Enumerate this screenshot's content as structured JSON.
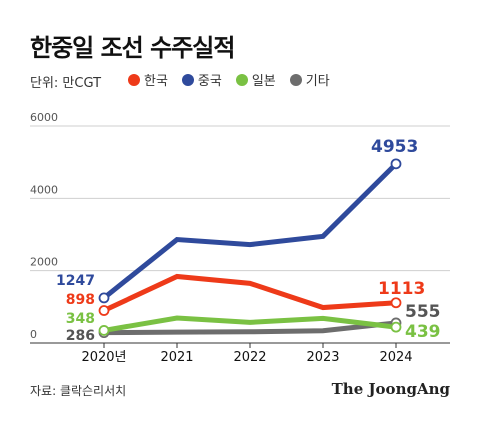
{
  "title": "한중일 조선 수주실적",
  "unit_label": "단위: 만CGT",
  "source": "자료: 클락슨리서치",
  "brand": "The JoongAng",
  "chart_data": {
    "type": "line",
    "x": [
      "2020년",
      "2021",
      "2022",
      "2023",
      "2024"
    ],
    "ylim": [
      0,
      6000
    ],
    "yticks": [
      0,
      2000,
      4000,
      6000
    ],
    "series": [
      {
        "name": "한국",
        "color": "#ee3a19",
        "values": [
          898,
          1840,
          1650,
          980,
          1113
        ]
      },
      {
        "name": "중국",
        "color": "#2f4a9c",
        "values": [
          1247,
          2860,
          2720,
          2950,
          4953
        ]
      },
      {
        "name": "일본",
        "color": "#7ac143",
        "values": [
          348,
          690,
          570,
          680,
          439
        ]
      },
      {
        "name": "기타",
        "color": "#6d6d6d",
        "values": [
          286,
          300,
          310,
          340,
          555
        ]
      }
    ],
    "start_labels": [
      "898",
      "1247",
      "348",
      "286"
    ],
    "end_labels": [
      "1113",
      "4953",
      "439",
      "555"
    ]
  }
}
